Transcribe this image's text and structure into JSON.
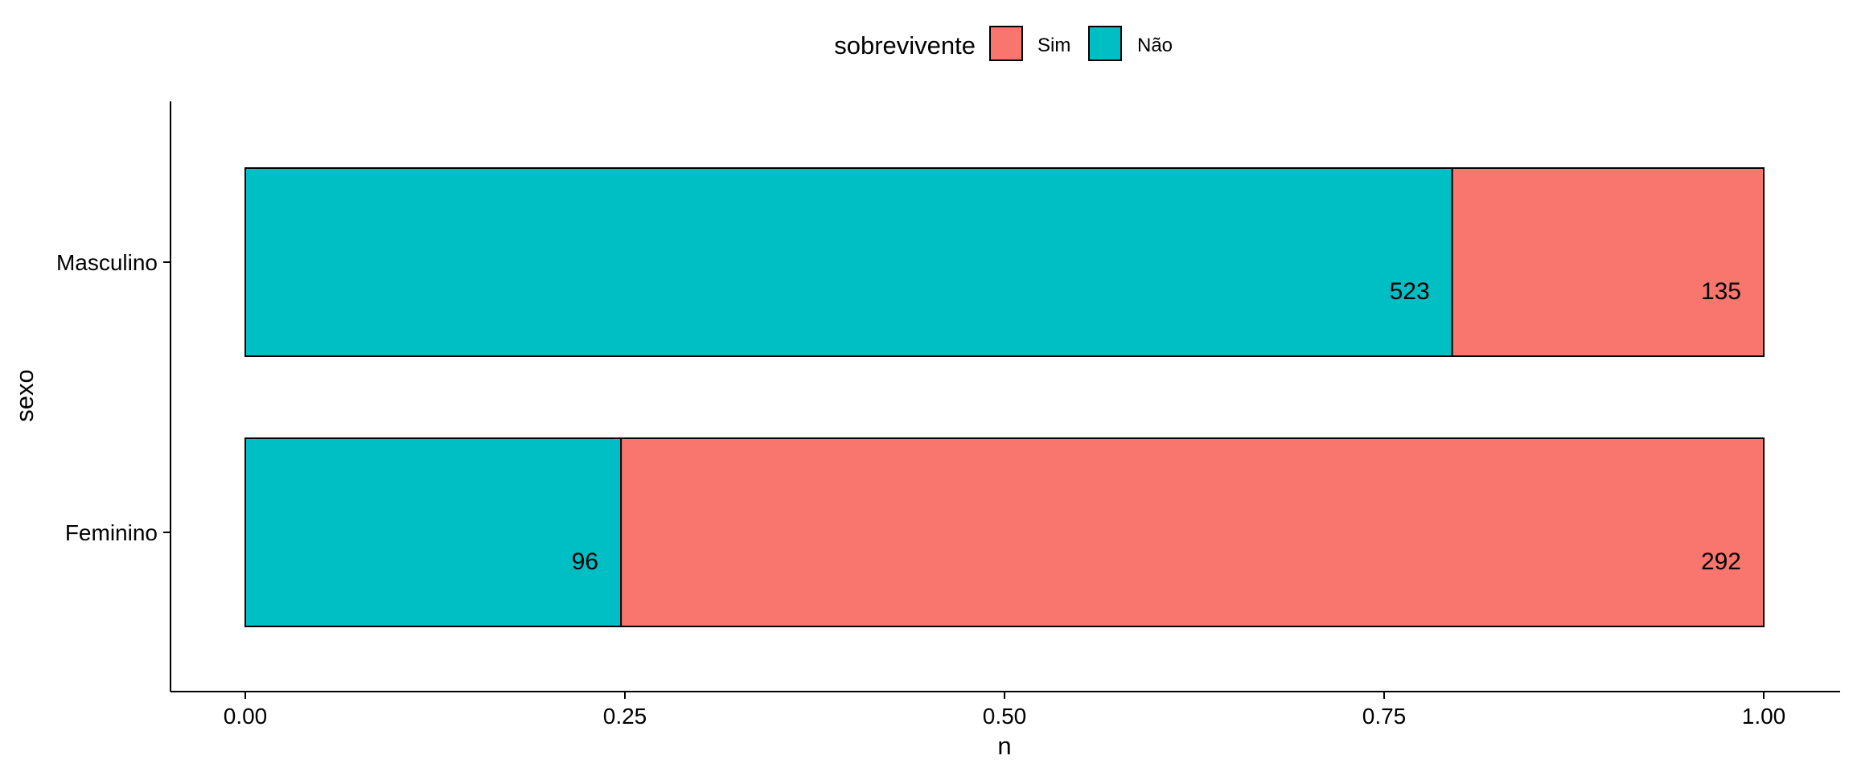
{
  "chart_data": {
    "type": "bar",
    "orientation": "horizontal",
    "stacked": true,
    "normalized": true,
    "xlabel": "n",
    "ylabel": "sexo",
    "xlim": [
      0,
      1
    ],
    "x_ticks": [
      0.0,
      0.25,
      0.5,
      0.75,
      1.0
    ],
    "x_tick_labels": [
      "0.00",
      "0.25",
      "0.50",
      "0.75",
      "1.00"
    ],
    "categories": [
      "Masculino",
      "Feminino"
    ],
    "grid": false,
    "legend": {
      "title": "sobrevivente",
      "position": "top",
      "entries": [
        "Sim",
        "Não"
      ]
    },
    "series": [
      {
        "name": "Não",
        "color": "#00BFC4",
        "values": [
          523,
          96
        ]
      },
      {
        "name": "Sim",
        "color": "#F8766D",
        "values": [
          135,
          292
        ]
      }
    ]
  }
}
